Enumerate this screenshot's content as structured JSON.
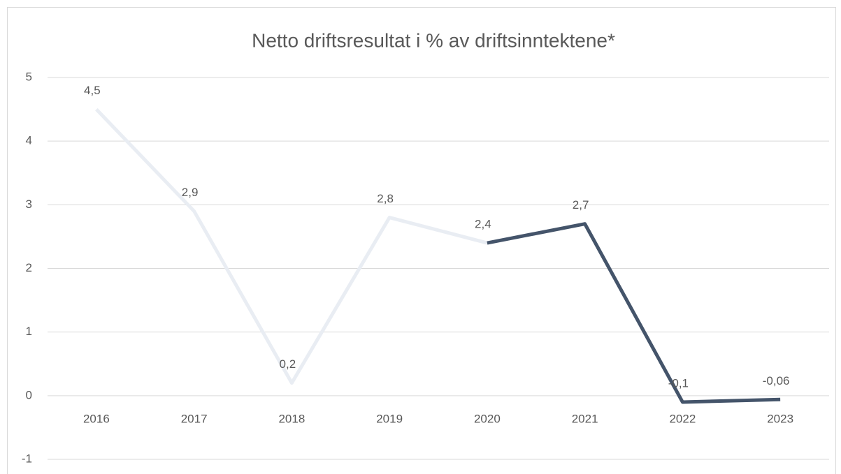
{
  "chart_data": {
    "type": "line",
    "title": "Netto driftsresultat i % av driftsinntektene*",
    "categories": [
      "2016",
      "2017",
      "2018",
      "2019",
      "2020",
      "2021",
      "2022",
      "2023"
    ],
    "series": [
      {
        "color": "#e9edf3",
        "values": [
          4.5,
          2.9,
          0.2,
          2.8,
          2.4,
          null,
          null,
          null
        ],
        "value_labels": [
          "4,5",
          "2,9",
          "0,2",
          "2,8",
          "2,4",
          null,
          null,
          null
        ]
      },
      {
        "color": "#44546a",
        "values": [
          null,
          null,
          null,
          null,
          2.4,
          2.7,
          -0.1,
          -0.06
        ],
        "value_labels": [
          null,
          null,
          null,
          null,
          null,
          "2,7",
          "-0,1",
          "-0,06"
        ]
      }
    ],
    "ylim": [
      -1,
      5
    ],
    "yticks": [
      -1,
      0,
      1,
      2,
      3,
      4,
      5
    ],
    "grid": true
  }
}
